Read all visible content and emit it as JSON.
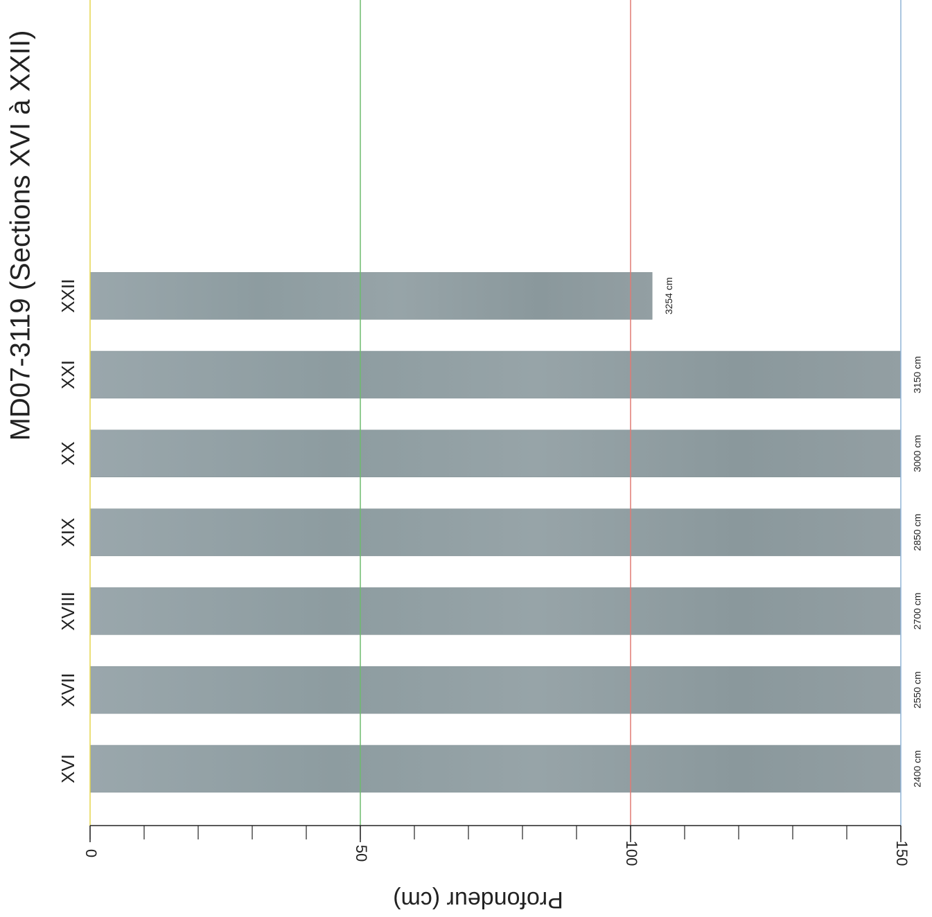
{
  "chart_data": {
    "type": "bar",
    "orientation": "horizontal",
    "title": "MD07-3119 (Sections XVI à XXII)",
    "xlabel": "Profondeur (cm)",
    "categories": [
      "XVI",
      "XVII",
      "XVIII",
      "XIX",
      "XX",
      "XXI",
      "XXII"
    ],
    "values": [
      150,
      150,
      150,
      150,
      150,
      150,
      104
    ],
    "bottom_depth_labels": [
      "2400 cm",
      "2550 cm",
      "2700 cm",
      "2850 cm",
      "3000 cm",
      "3150 cm",
      "3254 cm"
    ],
    "color": "#919fa3",
    "xlim": [
      0,
      150
    ],
    "xticks": [
      0,
      50,
      100,
      150
    ],
    "minor_xticks": [
      0,
      10,
      20,
      30,
      40,
      50,
      60,
      70,
      80,
      90,
      100,
      110,
      120,
      130,
      140,
      150
    ],
    "gridline_colors": [
      "#e6d64c",
      "#6dbb6d",
      "#e07a74",
      "#8fb3d6"
    ],
    "grid": true
  }
}
